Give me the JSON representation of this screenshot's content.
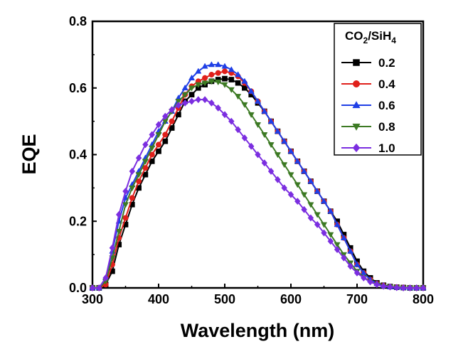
{
  "chart_data": {
    "type": "line",
    "xlabel": "Wavelength (nm)",
    "ylabel": "EQE",
    "xlim": [
      300,
      800
    ],
    "ylim": [
      0.0,
      0.8
    ],
    "xticks": [
      "300",
      "400",
      "500",
      "600",
      "700",
      "800"
    ],
    "yticks": [
      "0.0",
      "0.2",
      "0.4",
      "0.6",
      "0.8"
    ],
    "grid": false,
    "legend": {
      "placement": "top-right",
      "title_parts": [
        "CO",
        "2",
        "/SiH",
        "4"
      ]
    },
    "x": [
      300,
      310,
      320,
      330,
      340,
      350,
      360,
      370,
      380,
      390,
      400,
      410,
      420,
      430,
      440,
      450,
      460,
      470,
      480,
      490,
      500,
      510,
      520,
      530,
      540,
      550,
      560,
      570,
      580,
      590,
      600,
      610,
      620,
      630,
      640,
      650,
      660,
      670,
      680,
      690,
      700,
      710,
      720,
      730,
      740,
      750,
      760,
      770,
      780,
      790,
      800
    ],
    "series": [
      {
        "name": "0.2",
        "color": "#000000",
        "marker": "square",
        "values": [
          0.0,
          0.0,
          0.01,
          0.05,
          0.13,
          0.19,
          0.25,
          0.3,
          0.34,
          0.38,
          0.41,
          0.44,
          0.48,
          0.52,
          0.56,
          0.58,
          0.6,
          0.61,
          0.62,
          0.625,
          0.628,
          0.625,
          0.615,
          0.6,
          0.58,
          0.555,
          0.53,
          0.5,
          0.47,
          0.44,
          0.41,
          0.38,
          0.35,
          0.32,
          0.29,
          0.26,
          0.23,
          0.2,
          0.16,
          0.12,
          0.08,
          0.05,
          0.03,
          0.015,
          0.008,
          0.004,
          0.002,
          0.001,
          0.0,
          0.0,
          0.0
        ]
      },
      {
        "name": "0.4",
        "color": "#e0201b",
        "marker": "circle",
        "values": [
          0.0,
          0.0,
          0.01,
          0.07,
          0.15,
          0.21,
          0.27,
          0.32,
          0.36,
          0.4,
          0.43,
          0.46,
          0.5,
          0.54,
          0.58,
          0.605,
          0.62,
          0.63,
          0.64,
          0.645,
          0.65,
          0.645,
          0.635,
          0.615,
          0.59,
          0.56,
          0.53,
          0.5,
          0.47,
          0.44,
          0.41,
          0.38,
          0.35,
          0.32,
          0.29,
          0.26,
          0.23,
          0.19,
          0.15,
          0.11,
          0.07,
          0.045,
          0.025,
          0.013,
          0.007,
          0.003,
          0.002,
          0.001,
          0.0,
          0.0,
          0.0
        ]
      },
      {
        "name": "0.6",
        "color": "#1f3fe6",
        "marker": "triangle-up",
        "values": [
          0.0,
          0.0,
          0.03,
          0.11,
          0.2,
          0.27,
          0.31,
          0.35,
          0.39,
          0.43,
          0.47,
          0.5,
          0.53,
          0.57,
          0.6,
          0.63,
          0.65,
          0.665,
          0.67,
          0.67,
          0.665,
          0.655,
          0.64,
          0.62,
          0.59,
          0.56,
          0.53,
          0.5,
          0.47,
          0.44,
          0.41,
          0.38,
          0.35,
          0.32,
          0.29,
          0.26,
          0.23,
          0.19,
          0.15,
          0.11,
          0.07,
          0.045,
          0.025,
          0.013,
          0.007,
          0.003,
          0.002,
          0.001,
          0.0,
          0.0,
          0.0
        ]
      },
      {
        "name": "0.8",
        "color": "#3d7a24",
        "marker": "triangle-down",
        "values": [
          0.0,
          0.0,
          0.02,
          0.09,
          0.17,
          0.25,
          0.3,
          0.34,
          0.38,
          0.42,
          0.46,
          0.5,
          0.53,
          0.56,
          0.58,
          0.6,
          0.61,
          0.615,
          0.62,
          0.618,
          0.61,
          0.595,
          0.575,
          0.55,
          0.52,
          0.49,
          0.46,
          0.43,
          0.4,
          0.37,
          0.34,
          0.31,
          0.28,
          0.25,
          0.22,
          0.19,
          0.16,
          0.13,
          0.1,
          0.075,
          0.05,
          0.032,
          0.018,
          0.01,
          0.005,
          0.003,
          0.001,
          0.0,
          0.0,
          0.0,
          0.0
        ]
      },
      {
        "name": "1.0",
        "color": "#7b2ee0",
        "marker": "diamond",
        "values": [
          0.0,
          0.0,
          0.03,
          0.12,
          0.22,
          0.29,
          0.35,
          0.39,
          0.43,
          0.46,
          0.49,
          0.515,
          0.535,
          0.548,
          0.555,
          0.56,
          0.565,
          0.565,
          0.555,
          0.54,
          0.52,
          0.5,
          0.475,
          0.45,
          0.425,
          0.4,
          0.375,
          0.35,
          0.325,
          0.3,
          0.28,
          0.26,
          0.235,
          0.21,
          0.19,
          0.165,
          0.14,
          0.115,
          0.09,
          0.065,
          0.045,
          0.03,
          0.018,
          0.01,
          0.005,
          0.003,
          0.001,
          0.0,
          0.0,
          0.0,
          0.0
        ]
      }
    ]
  }
}
